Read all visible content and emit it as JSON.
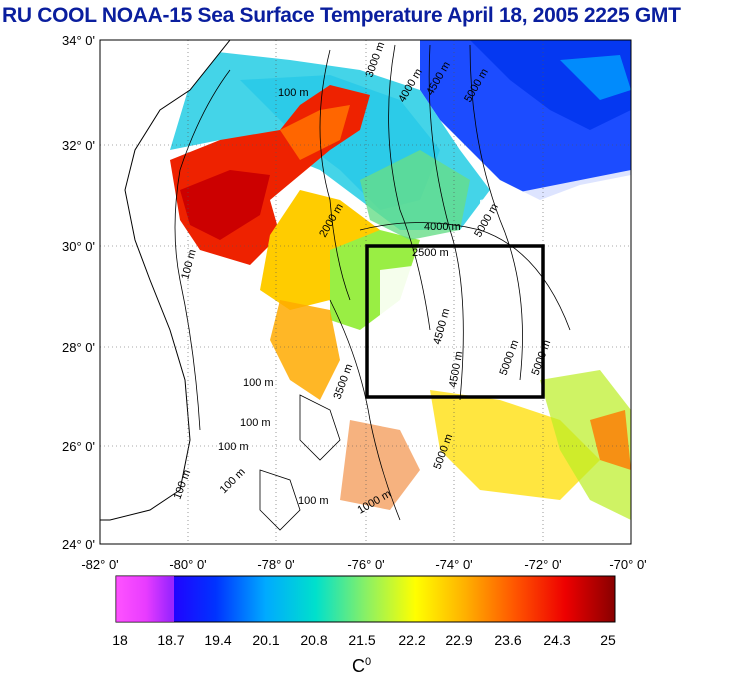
{
  "title": "RU COOL  NOAA-15 Sea Surface Temperature April 18, 2005 2225 GMT",
  "map": {
    "lat_labels": [
      "34° 0'",
      "32° 0'",
      "30° 0'",
      "28° 0'",
      "26° 0'",
      "24° 0'"
    ],
    "lon_labels": [
      "-82° 0'",
      "-80° 0'",
      "-78° 0'",
      "-76° 0'",
      "-74° 0'",
      "-72° 0'",
      "-70° 0'"
    ],
    "lat_range": [
      24,
      34
    ],
    "lon_range": [
      -82,
      -70
    ],
    "study_box": {
      "lon": [
        -76,
        -72
      ],
      "lat": [
        27,
        30
      ]
    },
    "contour_labels": [
      "100 m",
      "3000 m",
      "4000 m",
      "4500 m",
      "5000 m",
      "2000 m",
      "2500 m",
      "3500 m",
      "1000 m"
    ]
  },
  "colorbar": {
    "tick_labels": [
      "18",
      "18.7",
      "19.4",
      "20.1",
      "20.8",
      "21.5",
      "22.2",
      "22.9",
      "23.6",
      "24.3",
      "25"
    ],
    "min": 18,
    "max": 25,
    "unit": "C",
    "unit_sup": "0"
  }
}
